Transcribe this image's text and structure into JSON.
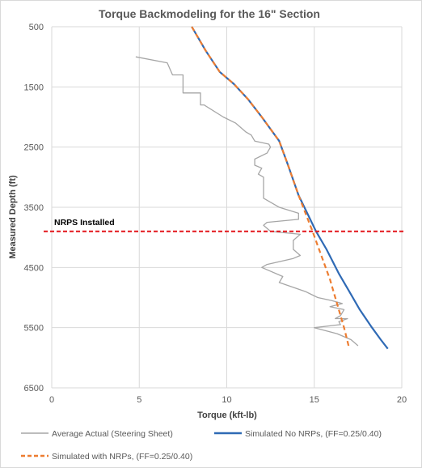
{
  "chart_data": {
    "type": "line",
    "title": "Torque Backmodeling for the 16\" Section",
    "xlabel": "Torque (kft-lb)",
    "ylabel": "Measured Depth (ft)",
    "xlim": [
      0,
      20
    ],
    "ylim": [
      500,
      6500
    ],
    "y_inverted": true,
    "x_ticks": [
      "0",
      "5",
      "10",
      "15",
      "20"
    ],
    "y_ticks": [
      "500",
      "1500",
      "2500",
      "3500",
      "4500",
      "5500",
      "6500"
    ],
    "grid": true,
    "legend_position": "bottom",
    "series": [
      {
        "name": "Average Actual (Steering Sheet)",
        "color": "#a6a6a6",
        "style": "solid",
        "points": [
          [
            4.8,
            1000
          ],
          [
            6.6,
            1100
          ],
          [
            6.9,
            1300
          ],
          [
            7.5,
            1300
          ],
          [
            7.5,
            1600
          ],
          [
            8.5,
            1600
          ],
          [
            8.5,
            1800
          ],
          [
            8.7,
            1800
          ],
          [
            9.8,
            2000
          ],
          [
            10.5,
            2100
          ],
          [
            11.1,
            2250
          ],
          [
            11.4,
            2300
          ],
          [
            11.6,
            2400
          ],
          [
            12.4,
            2450
          ],
          [
            12.5,
            2500
          ],
          [
            12.3,
            2600
          ],
          [
            11.6,
            2700
          ],
          [
            11.6,
            2800
          ],
          [
            12.0,
            2850
          ],
          [
            11.8,
            2950
          ],
          [
            12.1,
            3000
          ],
          [
            12.1,
            3150
          ],
          [
            12.1,
            3350
          ],
          [
            13.0,
            3500
          ],
          [
            14.1,
            3600
          ],
          [
            14.1,
            3700
          ],
          [
            12.3,
            3750
          ],
          [
            12.1,
            3800
          ],
          [
            12.5,
            3900
          ],
          [
            14.2,
            3950
          ],
          [
            13.8,
            4050
          ],
          [
            13.8,
            4200
          ],
          [
            14.2,
            4300
          ],
          [
            13.8,
            4350
          ],
          [
            12.3,
            4450
          ],
          [
            12.0,
            4500
          ],
          [
            13.2,
            4650
          ],
          [
            13.0,
            4750
          ],
          [
            14.5,
            4900
          ],
          [
            15.2,
            5000
          ],
          [
            16.0,
            5050
          ],
          [
            16.6,
            5100
          ],
          [
            15.9,
            5150
          ],
          [
            16.7,
            5200
          ],
          [
            16.5,
            5300
          ],
          [
            16.2,
            5350
          ],
          [
            16.9,
            5350
          ],
          [
            16.4,
            5400
          ],
          [
            16.5,
            5450
          ],
          [
            15.0,
            5500
          ],
          [
            16.3,
            5600
          ],
          [
            17.1,
            5700
          ],
          [
            17.5,
            5800
          ]
        ]
      },
      {
        "name": "Simulated No NRPs, (FF=0.25/0.40)",
        "color": "#2f6ab5",
        "style": "solid",
        "points": [
          [
            8.0,
            500
          ],
          [
            8.8,
            900
          ],
          [
            9.6,
            1250
          ],
          [
            10.4,
            1450
          ],
          [
            11.2,
            1700
          ],
          [
            12.0,
            2000
          ],
          [
            12.5,
            2200
          ],
          [
            13.0,
            2400
          ],
          [
            13.5,
            2800
          ],
          [
            14.1,
            3300
          ],
          [
            14.6,
            3600
          ],
          [
            15.1,
            3900
          ],
          [
            15.7,
            4200
          ],
          [
            16.4,
            4600
          ],
          [
            17.0,
            4900
          ],
          [
            17.6,
            5200
          ],
          [
            18.3,
            5500
          ],
          [
            18.8,
            5700
          ],
          [
            19.2,
            5850
          ]
        ]
      },
      {
        "name": "Simulated with NRPs, (FF=0.25/0.40)",
        "color": "#ed7d31",
        "style": "dashed",
        "points": [
          [
            8.0,
            500
          ],
          [
            8.8,
            900
          ],
          [
            9.6,
            1250
          ],
          [
            10.4,
            1450
          ],
          [
            11.2,
            1700
          ],
          [
            12.0,
            2000
          ],
          [
            12.5,
            2200
          ],
          [
            13.0,
            2400
          ],
          [
            13.5,
            2800
          ],
          [
            14.1,
            3300
          ],
          [
            14.5,
            3600
          ],
          [
            14.9,
            3900
          ],
          [
            15.4,
            4300
          ],
          [
            15.9,
            4700
          ],
          [
            16.3,
            5100
          ],
          [
            16.7,
            5500
          ],
          [
            17.0,
            5850
          ]
        ]
      }
    ],
    "annotations": [
      {
        "text": "NRPS Installed",
        "depth": 3900,
        "color": "#e3171b",
        "style": "dashed"
      }
    ]
  }
}
